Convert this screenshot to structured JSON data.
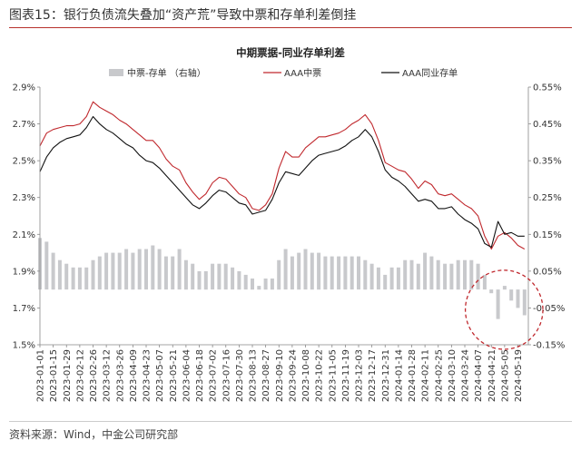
{
  "figure_label": "图表15：银行负债流失叠加“资产荒”导致中票和存单利差倒挂",
  "source_note": "资料来源：Wind，中金公司研究部",
  "colors": {
    "aaa_mtn": "#c0282d",
    "aaa_ncd": "#111111",
    "spread_bar": "#c8c9cc",
    "highlight_circle": "#c0282d",
    "accent_rule": "#b7312c"
  },
  "chart_data": {
    "type": "bar+line",
    "title": "中期票据-同业存单利差",
    "legend": [
      "中票-存单 （右轴）",
      "AAA中票",
      "AAA同业存单"
    ],
    "legend_placement": "top",
    "left_axis": {
      "min": 1.5,
      "max": 2.9,
      "ticks": [
        "1.5%",
        "1.7%",
        "1.9%",
        "2.1%",
        "2.3%",
        "2.5%",
        "2.7%",
        "2.9%"
      ]
    },
    "right_axis": {
      "min": -0.15,
      "max": 0.55,
      "ticks": [
        "-0.15%",
        "-0.05%",
        "0.05%",
        "0.15%",
        "0.25%",
        "0.35%",
        "0.45%",
        "0.55%"
      ]
    },
    "x_ticks": [
      "2023-01-01",
      "2023-01-15",
      "2023-01-29",
      "2023-02-12",
      "2023-02-26",
      "2023-03-12",
      "2023-03-26",
      "2023-04-09",
      "2023-04-23",
      "2023-05-07",
      "2023-05-21",
      "2023-06-04",
      "2023-06-18",
      "2023-07-02",
      "2023-07-16",
      "2023-07-30",
      "2023-08-13",
      "2023-08-27",
      "2023-09-10",
      "2023-09-24",
      "2023-10-08",
      "2023-10-22",
      "2023-11-05",
      "2023-11-19",
      "2023-12-03",
      "2023-12-17",
      "2023-12-31",
      "2024-01-14",
      "2024-01-28",
      "2024-02-11",
      "2024-02-25",
      "2024-03-10",
      "2024-03-24",
      "2024-04-07",
      "2024-04-21",
      "2024-05-05",
      "2024-05-19"
    ],
    "grid": false,
    "series": [
      {
        "name": "AAA中票",
        "axis": "left",
        "dates": [
          "2023-01-01",
          "2023-01-08",
          "2023-01-15",
          "2023-01-22",
          "2023-01-29",
          "2023-02-05",
          "2023-02-12",
          "2023-02-19",
          "2023-02-26",
          "2023-03-05",
          "2023-03-12",
          "2023-03-19",
          "2023-03-26",
          "2023-04-02",
          "2023-04-09",
          "2023-04-16",
          "2023-04-23",
          "2023-04-30",
          "2023-05-07",
          "2023-05-14",
          "2023-05-21",
          "2023-05-28",
          "2023-06-04",
          "2023-06-11",
          "2023-06-18",
          "2023-06-25",
          "2023-07-02",
          "2023-07-09",
          "2023-07-16",
          "2023-07-23",
          "2023-07-30",
          "2023-08-06",
          "2023-08-13",
          "2023-08-20",
          "2023-08-27",
          "2023-09-03",
          "2023-09-10",
          "2023-09-17",
          "2023-09-24",
          "2023-10-01",
          "2023-10-08",
          "2023-10-15",
          "2023-10-22",
          "2023-10-29",
          "2023-11-05",
          "2023-11-12",
          "2023-11-19",
          "2023-11-26",
          "2023-12-03",
          "2023-12-10",
          "2023-12-17",
          "2023-12-24",
          "2023-12-31",
          "2024-01-07",
          "2024-01-14",
          "2024-01-21",
          "2024-01-28",
          "2024-02-04",
          "2024-02-11",
          "2024-02-18",
          "2024-02-25",
          "2024-03-03",
          "2024-03-10",
          "2024-03-17",
          "2024-03-24",
          "2024-03-31",
          "2024-04-07",
          "2024-04-14",
          "2024-04-21",
          "2024-04-28",
          "2024-05-05",
          "2024-05-12",
          "2024-05-19",
          "2024-05-26"
        ],
        "values": [
          2.58,
          2.65,
          2.67,
          2.68,
          2.69,
          2.69,
          2.7,
          2.74,
          2.82,
          2.79,
          2.77,
          2.75,
          2.72,
          2.7,
          2.67,
          2.64,
          2.61,
          2.61,
          2.57,
          2.51,
          2.47,
          2.45,
          2.38,
          2.33,
          2.29,
          2.32,
          2.38,
          2.41,
          2.4,
          2.36,
          2.32,
          2.3,
          2.24,
          2.23,
          2.26,
          2.32,
          2.46,
          2.55,
          2.52,
          2.52,
          2.57,
          2.6,
          2.63,
          2.63,
          2.64,
          2.65,
          2.67,
          2.7,
          2.72,
          2.75,
          2.7,
          2.61,
          2.49,
          2.47,
          2.45,
          2.44,
          2.4,
          2.35,
          2.39,
          2.37,
          2.32,
          2.31,
          2.32,
          2.29,
          2.26,
          2.24,
          2.2,
          2.09,
          2.02,
          2.09,
          2.11,
          2.08,
          2.04,
          2.02
        ]
      },
      {
        "name": "AAA同业存单",
        "axis": "left",
        "dates": [
          "2023-01-01",
          "2023-01-08",
          "2023-01-15",
          "2023-01-22",
          "2023-01-29",
          "2023-02-05",
          "2023-02-12",
          "2023-02-19",
          "2023-02-26",
          "2023-03-05",
          "2023-03-12",
          "2023-03-19",
          "2023-03-26",
          "2023-04-02",
          "2023-04-09",
          "2023-04-16",
          "2023-04-23",
          "2023-04-30",
          "2023-05-07",
          "2023-05-14",
          "2023-05-21",
          "2023-05-28",
          "2023-06-04",
          "2023-06-11",
          "2023-06-18",
          "2023-06-25",
          "2023-07-02",
          "2023-07-09",
          "2023-07-16",
          "2023-07-23",
          "2023-07-30",
          "2023-08-06",
          "2023-08-13",
          "2023-08-20",
          "2023-08-27",
          "2023-09-03",
          "2023-09-10",
          "2023-09-17",
          "2023-09-24",
          "2023-10-01",
          "2023-10-08",
          "2023-10-15",
          "2023-10-22",
          "2023-10-29",
          "2023-11-05",
          "2023-11-12",
          "2023-11-19",
          "2023-11-26",
          "2023-12-03",
          "2023-12-10",
          "2023-12-17",
          "2023-12-24",
          "2023-12-31",
          "2024-01-07",
          "2024-01-14",
          "2024-01-21",
          "2024-01-28",
          "2024-02-04",
          "2024-02-11",
          "2024-02-18",
          "2024-02-25",
          "2024-03-03",
          "2024-03-10",
          "2024-03-17",
          "2024-03-24",
          "2024-03-31",
          "2024-04-07",
          "2024-04-14",
          "2024-04-21",
          "2024-04-28",
          "2024-05-05",
          "2024-05-12",
          "2024-05-19",
          "2024-05-26"
        ],
        "values": [
          2.44,
          2.52,
          2.57,
          2.6,
          2.62,
          2.63,
          2.64,
          2.68,
          2.74,
          2.7,
          2.67,
          2.65,
          2.62,
          2.59,
          2.57,
          2.53,
          2.5,
          2.49,
          2.46,
          2.42,
          2.38,
          2.34,
          2.3,
          2.26,
          2.24,
          2.27,
          2.31,
          2.34,
          2.33,
          2.3,
          2.27,
          2.26,
          2.21,
          2.22,
          2.23,
          2.29,
          2.38,
          2.44,
          2.43,
          2.42,
          2.46,
          2.5,
          2.53,
          2.54,
          2.55,
          2.56,
          2.58,
          2.61,
          2.63,
          2.67,
          2.63,
          2.55,
          2.45,
          2.41,
          2.39,
          2.36,
          2.32,
          2.28,
          2.29,
          2.28,
          2.24,
          2.24,
          2.25,
          2.21,
          2.18,
          2.16,
          2.13,
          2.05,
          2.03,
          2.17,
          2.1,
          2.11,
          2.09,
          2.09
        ]
      },
      {
        "name": "中票-存单 （右轴）",
        "axis": "right",
        "type": "bar",
        "dates": [
          "2023-01-01",
          "2023-01-08",
          "2023-01-15",
          "2023-01-22",
          "2023-01-29",
          "2023-02-05",
          "2023-02-12",
          "2023-02-19",
          "2023-02-26",
          "2023-03-05",
          "2023-03-12",
          "2023-03-19",
          "2023-03-26",
          "2023-04-02",
          "2023-04-09",
          "2023-04-16",
          "2023-04-23",
          "2023-04-30",
          "2023-05-07",
          "2023-05-14",
          "2023-05-21",
          "2023-05-28",
          "2023-06-04",
          "2023-06-11",
          "2023-06-18",
          "2023-06-25",
          "2023-07-02",
          "2023-07-09",
          "2023-07-16",
          "2023-07-23",
          "2023-07-30",
          "2023-08-06",
          "2023-08-13",
          "2023-08-20",
          "2023-08-27",
          "2023-09-03",
          "2023-09-10",
          "2023-09-17",
          "2023-09-24",
          "2023-10-01",
          "2023-10-08",
          "2023-10-15",
          "2023-10-22",
          "2023-10-29",
          "2023-11-05",
          "2023-11-12",
          "2023-11-19",
          "2023-11-26",
          "2023-12-03",
          "2023-12-10",
          "2023-12-17",
          "2023-12-24",
          "2023-12-31",
          "2024-01-07",
          "2024-01-14",
          "2024-01-21",
          "2024-01-28",
          "2024-02-04",
          "2024-02-11",
          "2024-02-18",
          "2024-02-25",
          "2024-03-03",
          "2024-03-10",
          "2024-03-17",
          "2024-03-24",
          "2024-03-31",
          "2024-04-07",
          "2024-04-14",
          "2024-04-21",
          "2024-04-28",
          "2024-05-05",
          "2024-05-12",
          "2024-05-19",
          "2024-05-26"
        ],
        "values": [
          0.14,
          0.13,
          0.1,
          0.08,
          0.07,
          0.06,
          0.06,
          0.06,
          0.08,
          0.09,
          0.1,
          0.1,
          0.1,
          0.11,
          0.1,
          0.11,
          0.11,
          0.12,
          0.11,
          0.09,
          0.09,
          0.11,
          0.08,
          0.07,
          0.05,
          0.05,
          0.07,
          0.07,
          0.07,
          0.06,
          0.05,
          0.04,
          0.03,
          0.01,
          0.03,
          0.03,
          0.08,
          0.11,
          0.09,
          0.1,
          0.11,
          0.1,
          0.1,
          0.09,
          0.09,
          0.09,
          0.09,
          0.09,
          0.09,
          0.08,
          0.07,
          0.06,
          0.04,
          0.06,
          0.06,
          0.08,
          0.08,
          0.07,
          0.1,
          0.09,
          0.08,
          0.07,
          0.07,
          0.08,
          0.08,
          0.08,
          0.07,
          0.04,
          -0.01,
          -0.08,
          0.01,
          -0.03,
          -0.05,
          -0.07
        ]
      }
    ]
  }
}
